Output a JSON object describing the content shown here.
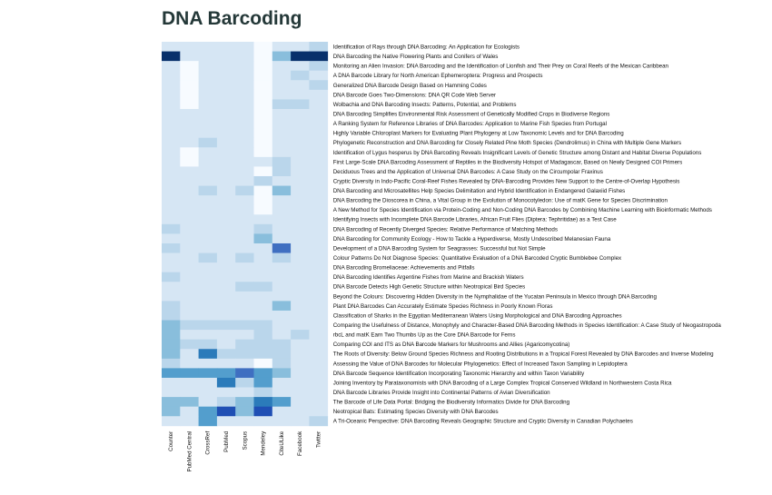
{
  "chart_data": {
    "type": "heatmap",
    "title": "DNA Barcoding",
    "columns": [
      "Counter",
      "PubMed Central",
      "CrossRef",
      "PubMed",
      "Scopus",
      "Mendeley",
      "CiteULike",
      "Facebook",
      "Twitter"
    ],
    "rows": [
      "Identification of Rays through DNA Barcoding: An Application for Ecologists",
      "DNA Barcoding the Native Flowering Plants and Conifers of Wales",
      "Monitoring an Alien Invasion: DNA Barcoding and the Identification of Lionfish and Their Prey on Coral Reefs of the Mexican Caribbean",
      "A DNA Barcode Library for North American Ephemeroptera: Progress and Prospects",
      "Generalized DNA Barcode Design Based on Hamming Codes",
      "DNA Barcode Goes Two-Dimensions: DNA QR Code Web Server",
      "Wolbachia and DNA Barcoding Insects: Patterns, Potential, and Problems",
      "DNA Barcoding Simplifies Environmental Risk Assessment of Genetically Modified Crops in Biodiverse Regions",
      "A Ranking System for Reference Libraries of DNA Barcodes: Application to Marine Fish Species from Portugal",
      "Highly Variable Chloroplast Markers for Evaluating Plant Phylogeny at Low Taxonomic Levels and for DNA Barcoding",
      "Phylogenetic Reconstruction and DNA Barcoding for Closely Related Pine Moth Species (Dendrolimus) in China with Multiple Gene Markers",
      "Identification of Lygus hesperus by DNA Barcoding Reveals Insignificant Levels of Genetic Structure among Distant and Habitat Diverse Populations",
      "First Large-Scale DNA Barcoding Assessment of Reptiles in the Biodiversity Hotspot of Madagascar, Based on Newly Designed COI Primers",
      "Deciduous Trees and the Application of Universal DNA Barcodes: A Case Study on the Circumpolar Fraxinus",
      "Cryptic Diversity in Indo-Pacific Coral-Reef Fishes Revealed by DNA-Barcoding Provides New Support to the Centre-of-Overlap Hypothesis",
      "DNA Barcoding and Microsatellites Help Species Delimitation and Hybrid Identification in Endangered Galaxiid Fishes",
      "DNA Barcoding the Dioscorea in China, a Vital Group in the Evolution of Monocotyledon: Use of matK Gene for Species Discrimination",
      "A New Method for Species Identification via Protein-Coding and Non-Coding DNA Barcodes by Combining Machine Learning with Bioinformatic Methods",
      "Identifying Insects with Incomplete DNA Barcode Libraries, African Fruit Flies (Diptera: Tephritidae) as a Test Case",
      "DNA Barcoding of Recently Diverged Species: Relative Performance of Matching Methods",
      "DNA Barcoding for Community Ecology - How to Tackle a Hyperdiverse, Mostly Undescribed Melanesian Fauna",
      "Development of a DNA Barcoding System for Seagrasses: Successful but Not Simple",
      "Colour Patterns Do Not Diagnose Species: Quantitative Evaluation of a DNA Barcoded Cryptic Bumblebee Complex",
      "DNA Barcoding Bromeliaceae: Achievements and Pitfalls",
      "DNA Barcoding Identifies Argentine Fishes from Marine and Brackish Waters",
      "DNA Barcode Detects High Genetic Structure within Neotropical Bird Species",
      "Beyond the Colours: Discovering Hidden Diversity in the Nymphalidae of the Yucatan Peninsula in Mexico through DNA Barcoding",
      "Plant DNA Barcodes Can Accurately Estimate Species Richness in Poorly Known Floras",
      "Classification of Sharks in the Egyptian Mediterranean Waters Using Morphological and DNA Barcoding Approaches",
      "Comparing the Usefulness of Distance, Monophyly and Character-Based DNA Barcoding Methods in Species Identification: A Case Study of Neogastropoda",
      "rbcL and matK Earn Two Thumbs Up as the Core DNA Barcode for Ferns",
      "Comparing COI and ITS as DNA Barcode Markers for Mushrooms and Allies (Agaricomycotina)",
      "The Roots of Diversity: Below Ground Species Richness and Rooting Distributions in a Tropical Forest Revealed by DNA Barcodes and Inverse Modeling",
      "Assessing the Value of DNA Barcodes for Molecular Phylogenetics: Effect of Increased Taxon Sampling in Lepidoptera",
      "DNA Barcode Sequence Identification Incorporating Taxonomic Hierarchy and within Taxon Variability",
      "Joining Inventory by Parataxonomists with DNA Barcoding of a Large Complex Tropical Conserved Wildland in Northwestern Costa Rica",
      "DNA Barcode Libraries Provide Insight into Continental Patterns of Avian Diversification",
      "The Barcode of Life Data Portal: Bridging the Biodiversity Informatics Divide for DNA Barcoding",
      "Neotropical Bats: Estimating Species Diversity with DNA Barcodes",
      "A Tri-Oceanic Perspective: DNA Barcoding Reveals Geographic Structure and Cryptic Diversity in Canadian Polychaetes"
    ],
    "values": [
      [
        1,
        1,
        1,
        1,
        1,
        0,
        1,
        1,
        2
      ],
      [
        8,
        1,
        1,
        1,
        1,
        0,
        3,
        8,
        8
      ],
      [
        1,
        0,
        1,
        1,
        1,
        0,
        1,
        1,
        2
      ],
      [
        1,
        0,
        1,
        1,
        1,
        0,
        1,
        2,
        1
      ],
      [
        1,
        0,
        1,
        1,
        1,
        0,
        1,
        1,
        2
      ],
      [
        1,
        0,
        1,
        1,
        1,
        0,
        1,
        1,
        1
      ],
      [
        1,
        0,
        1,
        1,
        1,
        0,
        2,
        2,
        1
      ],
      [
        1,
        1,
        1,
        1,
        1,
        0,
        1,
        1,
        1
      ],
      [
        1,
        1,
        1,
        1,
        1,
        0,
        1,
        1,
        1
      ],
      [
        1,
        1,
        1,
        1,
        1,
        0,
        1,
        1,
        1
      ],
      [
        1,
        1,
        2,
        1,
        1,
        0,
        1,
        1,
        1
      ],
      [
        1,
        0,
        1,
        1,
        1,
        0,
        1,
        1,
        1
      ],
      [
        1,
        0,
        1,
        1,
        1,
        1,
        2,
        1,
        1
      ],
      [
        1,
        1,
        1,
        1,
        1,
        0,
        2,
        1,
        1
      ],
      [
        1,
        1,
        1,
        1,
        1,
        2,
        1,
        1,
        1
      ],
      [
        1,
        1,
        2,
        1,
        2,
        0,
        3,
        1,
        1
      ],
      [
        1,
        1,
        1,
        1,
        1,
        0,
        1,
        1,
        1
      ],
      [
        1,
        1,
        1,
        1,
        1,
        0,
        1,
        1,
        1
      ],
      [
        1,
        1,
        1,
        1,
        1,
        1,
        1,
        1,
        1
      ],
      [
        2,
        1,
        1,
        1,
        1,
        2,
        1,
        1,
        1
      ],
      [
        1,
        1,
        1,
        1,
        1,
        3,
        1,
        1,
        1
      ],
      [
        2,
        1,
        1,
        1,
        1,
        1,
        6,
        1,
        1
      ],
      [
        1,
        1,
        2,
        1,
        2,
        1,
        2,
        1,
        1
      ],
      [
        1,
        1,
        1,
        1,
        1,
        1,
        1,
        1,
        1
      ],
      [
        2,
        1,
        1,
        1,
        1,
        1,
        1,
        1,
        1
      ],
      [
        1,
        1,
        1,
        1,
        2,
        2,
        1,
        1,
        1
      ],
      [
        1,
        1,
        1,
        1,
        1,
        1,
        1,
        1,
        1
      ],
      [
        2,
        1,
        1,
        1,
        1,
        1,
        3,
        1,
        1
      ],
      [
        2,
        1,
        1,
        1,
        1,
        1,
        1,
        1,
        1
      ],
      [
        3,
        2,
        2,
        2,
        2,
        2,
        1,
        1,
        1
      ],
      [
        3,
        1,
        1,
        1,
        1,
        2,
        1,
        2,
        1
      ],
      [
        3,
        2,
        2,
        1,
        2,
        2,
        2,
        1,
        1
      ],
      [
        3,
        1,
        5,
        2,
        2,
        2,
        2,
        1,
        1
      ],
      [
        2,
        1,
        1,
        1,
        1,
        0,
        2,
        1,
        1
      ],
      [
        4,
        4,
        4,
        4,
        6,
        4,
        3,
        1,
        1
      ],
      [
        1,
        1,
        1,
        5,
        2,
        4,
        1,
        1,
        1
      ],
      [
        1,
        1,
        1,
        1,
        1,
        2,
        1,
        1,
        1
      ],
      [
        3,
        3,
        1,
        2,
        3,
        5,
        4,
        1,
        1
      ],
      [
        3,
        1,
        4,
        7,
        3,
        7,
        1,
        1,
        1
      ],
      [
        1,
        1,
        4,
        1,
        1,
        1,
        1,
        1,
        2
      ]
    ]
  }
}
